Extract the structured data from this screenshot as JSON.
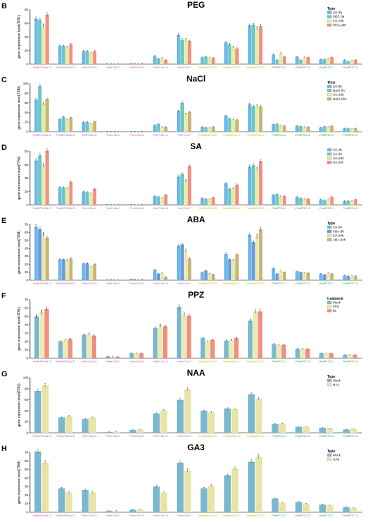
{
  "category_colors": [
    "#c050c8",
    "#c050c8",
    "#c050c8",
    "#c050c8",
    "#c050c8",
    "#c050c8",
    "#c050c8",
    "#c8b400",
    "#c8b400",
    "#c8b400",
    "#38a048",
    "#38a048",
    "#38a048",
    "#38a048"
  ],
  "chart_data": [
    {
      "type": "bar",
      "letter": "B",
      "title": "PEG",
      "ylabel": "gene expression level(TPM)",
      "ylim": [
        0,
        80
      ],
      "yticks": [
        0,
        20,
        40,
        60,
        80
      ],
      "categories": [
        "PedEIF4A3a-D",
        "PedEIF4A3b-D",
        "PedY14a-D",
        "PedY14b-C",
        "PedY14b-D",
        "PedY14c-D",
        "PedY14c-F",
        "PedMAGO1-D",
        "PedMAGO2-C",
        "PedMAGO3-D",
        "PedBTZ1-C",
        "PedBTZ1-D",
        "PedBTZ2-C",
        "PedBTZ2-D"
      ],
      "legend_title": "Type",
      "series": [
        {
          "name": "CK-3h",
          "color": "#6fb7e8",
          "values": [
            67,
            27,
            19,
            0.5,
            0.8,
            12,
            43,
            10,
            32,
            57,
            14,
            11,
            7,
            6
          ]
        },
        {
          "name": "PEG-3h",
          "color": "#6cc9c0",
          "values": [
            65,
            27,
            19,
            0.5,
            0.8,
            8,
            36,
            11,
            29,
            58,
            6,
            6,
            7,
            4
          ]
        },
        {
          "name": "CK-24h",
          "color": "#e6e9a8",
          "values": [
            57,
            25,
            16,
            0.5,
            0.8,
            9,
            36,
            9,
            25,
            53,
            16,
            10,
            8,
            5
          ]
        },
        {
          "name": "PEG-24h",
          "color": "#f09080",
          "values": [
            73,
            29,
            19,
            0.5,
            0.8,
            6,
            34,
            9,
            23,
            56,
            11,
            10,
            10,
            6
          ]
        }
      ]
    },
    {
      "type": "bar",
      "letter": "C",
      "title": "NaCl",
      "ylabel": "gene expression level(TPM)",
      "ylim": [
        0,
        100
      ],
      "yticks": [
        0,
        20,
        40,
        60,
        80,
        100
      ],
      "categories": [
        "PedEIF4A3a-D",
        "PedEIF4A3b-D",
        "PedY14a-D",
        "PedY14b-C",
        "PedY14b-D",
        "PedY14c-D",
        "PedY14c-F",
        "PedMAGO1-D",
        "PedMAGO2-C",
        "PedMAGO3-D",
        "PedBTZ1-C",
        "PedBTZ1-D",
        "PedBTZ2-C",
        "PedBTZ2-D"
      ],
      "legend_title": "Time",
      "series": [
        {
          "name": "CK-3h",
          "color": "#6fb7e8",
          "values": [
            67,
            26,
            20,
            0.5,
            0.5,
            14,
            43,
            10,
            33,
            57,
            15,
            12,
            9,
            7
          ]
        },
        {
          "name": "NaCl-3h",
          "color": "#6cc9c0",
          "values": [
            95,
            31,
            20,
            0.5,
            0.5,
            16,
            60,
            9,
            27,
            53,
            16,
            11,
            11,
            7
          ]
        },
        {
          "name": "CK-24h",
          "color": "#e6e9a8",
          "values": [
            58,
            25,
            16,
            0.5,
            0.5,
            10,
            37,
            9,
            25,
            54,
            13,
            10,
            10,
            6
          ]
        },
        {
          "name": "NaCl-24h",
          "color": "#c8b478",
          "values": [
            68,
            29,
            21,
            0.5,
            0.5,
            10,
            41,
            10,
            25,
            52,
            12,
            10,
            12,
            7
          ]
        }
      ]
    },
    {
      "type": "bar",
      "letter": "D",
      "title": "SA",
      "ylabel": "gene expression level(TPM)",
      "ylim": [
        0,
        80
      ],
      "yticks": [
        0,
        20,
        40,
        60,
        80
      ],
      "categories": [
        "PedEIF4A3a-D",
        "PedEIF4A3b-D",
        "PedY14a-D",
        "PedY14b-C",
        "PedY14b-D",
        "PedY14c-D",
        "PedY14c-F",
        "PedMAGO1-D",
        "PedMAGO2-C",
        "PedMAGO3-D",
        "PedBTZ1-C",
        "PedBTZ1-D",
        "PedBTZ2-C",
        "PedBTZ2-D"
      ],
      "legend_title": "",
      "series": [
        {
          "name": "CK-3h",
          "color": "#6fb7e8",
          "values": [
            66,
            26,
            20,
            0.5,
            0.5,
            13,
            42,
            10,
            32,
            57,
            15,
            12,
            8,
            6
          ]
        },
        {
          "name": "SA-3h",
          "color": "#6cc9c0",
          "values": [
            74,
            26,
            19,
            0.5,
            0.5,
            12,
            46,
            9,
            24,
            59,
            16,
            10,
            7,
            6
          ]
        },
        {
          "name": "CK-24h",
          "color": "#e6e9a8",
          "values": [
            59,
            25,
            17,
            0.5,
            0.5,
            11,
            36,
            9,
            25,
            54,
            13,
            9,
            9,
            6
          ]
        },
        {
          "name": "SA-24h",
          "color": "#f09080",
          "values": [
            81,
            34,
            24,
            0.5,
            0.5,
            15,
            58,
            11,
            30,
            65,
            13,
            9,
            12,
            8
          ]
        }
      ]
    },
    {
      "type": "bar",
      "letter": "E",
      "title": "ABA",
      "ylabel": "gene expression level(TPM)",
      "ylim": [
        0,
        70
      ],
      "yticks": [
        0,
        10,
        20,
        30,
        40,
        50,
        60,
        70
      ],
      "categories": [
        "PedEIF4A3a-D",
        "PedEIF4A3b-D",
        "PedY14a-D",
        "PedY14b-C",
        "PedY14b-D",
        "PedY14c-D",
        "PedY14c-F",
        "PedMAGO1-D",
        "PedMAGO2-C",
        "PedMAGO3-D",
        "PedBTZ1-C",
        "PedBTZ1-D",
        "PedBTZ2-C",
        "PedBTZ2-D"
      ],
      "legend_title": "Type",
      "series": [
        {
          "name": "CK-3h",
          "color": "#6fb7e8",
          "values": [
            67,
            26,
            21,
            0.5,
            1.2,
            13,
            43,
            10,
            33,
            57,
            15,
            11,
            8,
            6
          ]
        },
        {
          "name": "ABA-3h",
          "color": "#6c9ce0",
          "values": [
            64,
            26,
            21,
            0.5,
            0.8,
            8,
            45,
            12,
            26,
            48,
            8,
            10,
            7,
            5
          ]
        },
        {
          "name": "CK-24h",
          "color": "#e6e9a8",
          "values": [
            58,
            25,
            17,
            0.5,
            0.8,
            9,
            37,
            8,
            25,
            55,
            12,
            9,
            9,
            6
          ]
        },
        {
          "name": "ABA-24h",
          "color": "#c8b478",
          "values": [
            53,
            27,
            20,
            0.5,
            0.8,
            4,
            27,
            7,
            32,
            64,
            10,
            9,
            8,
            5
          ]
        }
      ]
    },
    {
      "type": "bar",
      "letter": "F",
      "title": "PPZ",
      "ylabel": "gene expression level(TPM)",
      "ylim": [
        0,
        70
      ],
      "yticks": [
        0,
        10,
        20,
        30,
        40,
        50,
        60,
        70
      ],
      "categories": [
        "PedEIF4A3a-D",
        "PedEIF4A3b-D",
        "PedY14a-D",
        "PedY14b-C",
        "PedY14b-D",
        "PedY14c-D",
        "PedY14c-F",
        "PedMAGO1-D",
        "PedMAGO2-C",
        "PedMAGO3-D",
        "PedBTZ1-C",
        "PedBTZ1-D",
        "PedBTZ2-C",
        "PedBTZ2-D"
      ],
      "legend_title": "treatment",
      "series": [
        {
          "name": "Mock",
          "color": "#7bb8d0",
          "values": [
            50,
            20,
            28,
            2,
            6,
            36,
            61,
            24,
            21,
            45,
            17,
            11,
            6,
            4
          ]
        },
        {
          "name": "PPZ",
          "color": "#e8ecb0",
          "values": [
            55,
            22,
            29,
            1.5,
            6,
            39,
            53,
            20,
            22,
            56,
            16,
            11,
            6,
            4
          ]
        },
        {
          "name": "BL",
          "color": "#f09080",
          "values": [
            59,
            23,
            27,
            1.5,
            6,
            38,
            51,
            22,
            24,
            56,
            16,
            11,
            6,
            4
          ]
        }
      ]
    },
    {
      "type": "bar",
      "letter": "G",
      "title": "NAA",
      "ylabel": "gene expression level(TPM)",
      "ylim": [
        0,
        100
      ],
      "yticks": [
        0,
        20,
        40,
        60,
        80,
        100
      ],
      "categories": [
        "PedEIF4A3a-D",
        "PedEIF4A3b-D",
        "PedY14a-D",
        "PedY14b-C",
        "PedY14b-D",
        "PedY14c-D",
        "PedY14c-F",
        "PedMAGO1-D",
        "PedMAGO2-C",
        "PedMAGO3-D",
        "PedBTZ1-C",
        "PedBTZ1-D",
        "PedBTZ2-C",
        "PedBTZ2-D"
      ],
      "legend_title": "Type",
      "series": [
        {
          "name": "Mock",
          "color": "#7bb8d0",
          "values": [
            76,
            28,
            25,
            1.5,
            5,
            35,
            60,
            40,
            44,
            70,
            16,
            11,
            9,
            6
          ]
        },
        {
          "name": "NAA",
          "color": "#e8e4a8",
          "values": [
            86,
            30,
            28,
            2,
            6,
            41,
            79,
            37,
            43,
            62,
            17,
            11,
            8,
            7
          ]
        }
      ]
    },
    {
      "type": "bar",
      "letter": "H",
      "title": "GA3",
      "ylabel": "gene expression level(TPM)",
      "ylim": [
        0,
        70
      ],
      "yticks": [
        0,
        10,
        20,
        30,
        40,
        50,
        60,
        70
      ],
      "categories": [
        "PedEIF4A3a-D",
        "PedEIF4A3b-D",
        "PedY14a-D",
        "PedY14b-C",
        "PedY14b-D",
        "PedY14c-D",
        "PedY14c-F",
        "PedMAGO1-D",
        "PedMAGO2-C",
        "PedMAGO3-D",
        "PedBTZ1-C",
        "PedBTZ1-D",
        "PedBTZ2-C",
        "PedBTZ2-D"
      ],
      "legend_title": "Type",
      "series": [
        {
          "name": "Mock",
          "color": "#7bb8d0",
          "values": [
            71,
            28,
            26,
            1.5,
            3,
            30,
            58,
            28,
            43,
            59,
            16,
            12,
            9,
            6
          ]
        },
        {
          "name": "GA3",
          "color": "#e8e4a8",
          "values": [
            58,
            23,
            23,
            1.5,
            3,
            23,
            49,
            31,
            51,
            65,
            11,
            10,
            8,
            5
          ]
        }
      ]
    }
  ]
}
